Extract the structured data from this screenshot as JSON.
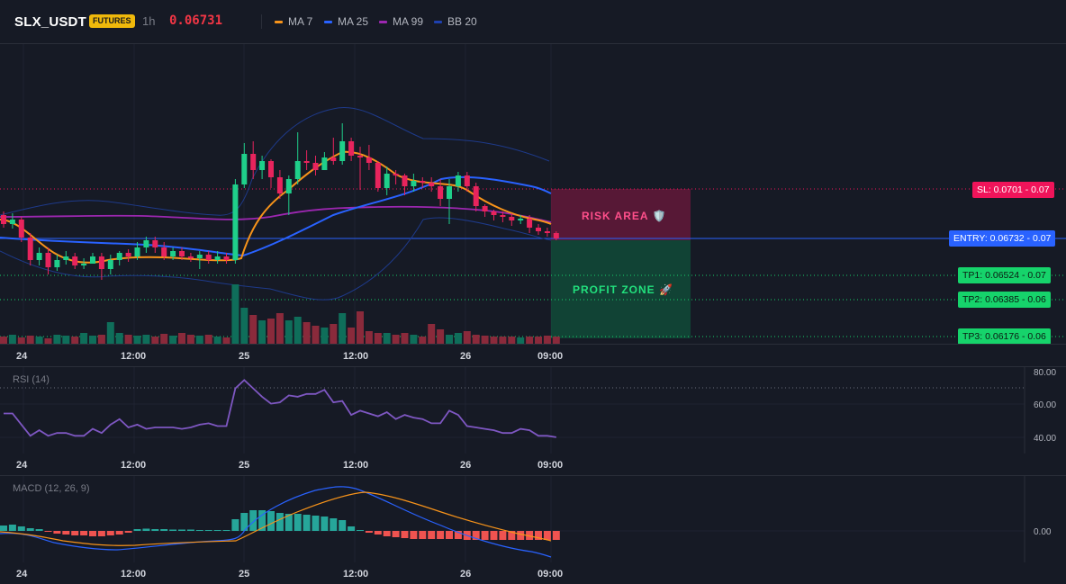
{
  "header": {
    "symbol": "SLX_USDT",
    "badge": "FUTURES",
    "timeframe": "1h",
    "last_price": "0.06731",
    "indicators": [
      {
        "label": "MA 7",
        "color": "#f7931a"
      },
      {
        "label": "MA 25",
        "color": "#2962ff"
      },
      {
        "label": "MA 99",
        "color": "#9c27b0"
      },
      {
        "label": "BB 20",
        "color": "#1e40af"
      }
    ]
  },
  "price_levels": {
    "sl": "SL: 0.0701 - 0.07",
    "entry": "ENTRY: 0.06732 - 0.07",
    "tp1": "TP1: 0.06524 - 0.07",
    "tp2": "TP2: 0.06385 - 0.06",
    "tp3": "TP3: 0.06176 - 0.06"
  },
  "zones": {
    "risk": "RISK AREA 🛡️",
    "profit": "PROFIT ZONE 🚀"
  },
  "time_axis": [
    "24",
    "12:00",
    "25",
    "12:00",
    "26",
    "09:00"
  ],
  "rsi": {
    "label": "RSI (14)",
    "ticks": [
      "80.00",
      "60.00",
      "40.00"
    ],
    "values": [
      54,
      54,
      46,
      38,
      42,
      38,
      40,
      40,
      38,
      38,
      43,
      40,
      46,
      50,
      44,
      46,
      43,
      44,
      44,
      44,
      43,
      44,
      46,
      47,
      45,
      45,
      72,
      78,
      72,
      66,
      61,
      62,
      67,
      66,
      68,
      68,
      71,
      62,
      63,
      53,
      56,
      54,
      52,
      55,
      50,
      53,
      51,
      50,
      47,
      47,
      56,
      53,
      45,
      44,
      43,
      42,
      40,
      40,
      43,
      42,
      38,
      38,
      37
    ],
    "colors": {
      "line": "#7e57c2"
    }
  },
  "macd": {
    "label": "MACD (12, 26, 9)",
    "ticks": [
      "0.00"
    ],
    "histogram": [
      0.12,
      0.14,
      0.1,
      0.06,
      0.04,
      -0.02,
      -0.06,
      -0.08,
      -0.1,
      -0.1,
      -0.12,
      -0.12,
      -0.1,
      -0.08,
      -0.04,
      0.04,
      0.05,
      0.04,
      0.04,
      0.03,
      0.03,
      0.03,
      0.02,
      0.02,
      0.02,
      0.02,
      0.26,
      0.4,
      0.46,
      0.46,
      0.44,
      0.4,
      0.38,
      0.38,
      0.36,
      0.34,
      0.32,
      0.28,
      0.24,
      0.1,
      0.02,
      -0.04,
      -0.08,
      -0.12,
      -0.14,
      -0.16,
      -0.18,
      -0.18,
      -0.18,
      -0.18,
      -0.18,
      -0.18,
      -0.2,
      -0.2,
      -0.2,
      -0.2,
      -0.2,
      -0.2,
      -0.2,
      -0.2,
      -0.2,
      -0.2,
      -0.2
    ],
    "colors": {
      "up": "#26a69a",
      "down": "#ef5350",
      "macd": "#2962ff",
      "signal": "#f7931a"
    }
  },
  "colors": {
    "background": "#161a25",
    "bull": "#089981",
    "bear": "#f23645",
    "sl_tag": "#f0145a",
    "entry_tag": "#2962ff",
    "tp_tag": "#16d36b"
  }
}
